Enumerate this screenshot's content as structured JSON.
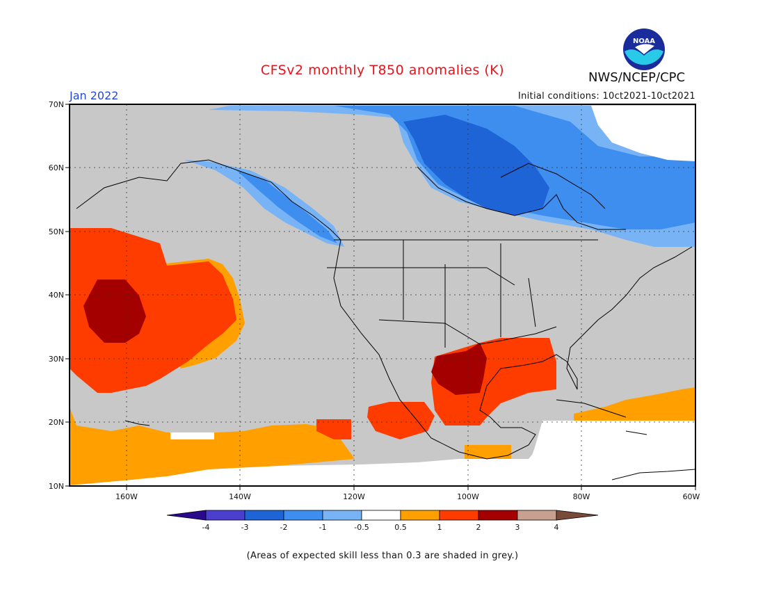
{
  "header": {
    "title": "CFSv2 monthly T850 anomalies (K)",
    "agency": "NWS/NCEP/CPC",
    "month": "Jan 2022",
    "initial_conditions": "Initial conditions: 10ct2021-10ct2021",
    "logo_text": "NOAA"
  },
  "map": {
    "lat_labels": [
      "70N",
      "60N",
      "50N",
      "40N",
      "30N",
      "20N",
      "10N"
    ],
    "lon_labels": [
      "160W",
      "140W",
      "120W",
      "100W",
      "80W",
      "60W"
    ],
    "skill_shade_color": "#c8c8c8",
    "land_outline_color": "#000000"
  },
  "colorbar": {
    "levels": [
      "-4",
      "-3",
      "-2",
      "-1",
      "-0.5",
      "0.5",
      "1",
      "2",
      "3",
      "4"
    ],
    "colors": [
      "#2a0a8c",
      "#4b3fd0",
      "#1e64d6",
      "#3e8ef0",
      "#78b4f5",
      "#ffffff",
      "#ffa000",
      "#ff3c00",
      "#a50000",
      "#c8a090",
      "#7a4a38"
    ]
  },
  "footnote": "(Areas of expected skill less than 0.3 are shaded in grey.)"
}
